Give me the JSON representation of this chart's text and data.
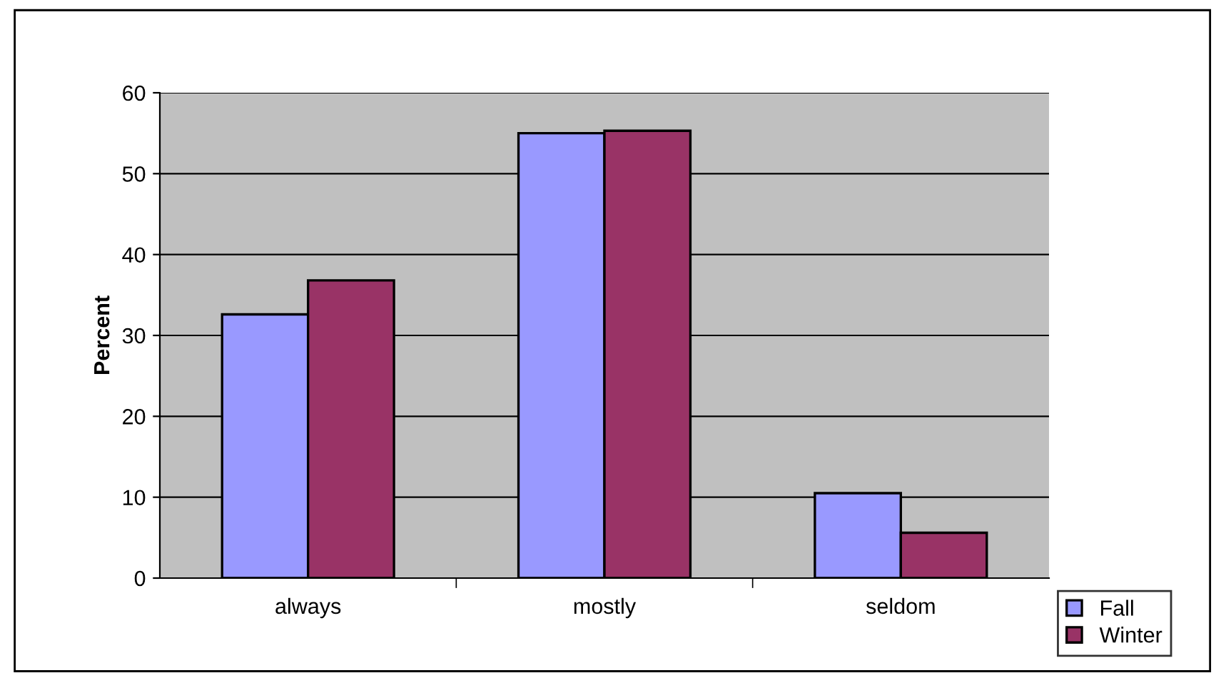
{
  "chart_data": {
    "type": "bar",
    "ylabel": "Percent",
    "categories": [
      "always",
      "mostly",
      "seldom"
    ],
    "series": [
      {
        "name": "Fall",
        "color": "#9999ff",
        "values": [
          32.6,
          55.0,
          10.5
        ]
      },
      {
        "name": "Winter",
        "color": "#993366",
        "values": [
          36.8,
          55.3,
          5.6
        ]
      }
    ],
    "ylim": [
      0,
      60
    ],
    "yticks": [
      0,
      10,
      20,
      30,
      40,
      50,
      60
    ],
    "grid": "y",
    "legend": "bottom right"
  }
}
